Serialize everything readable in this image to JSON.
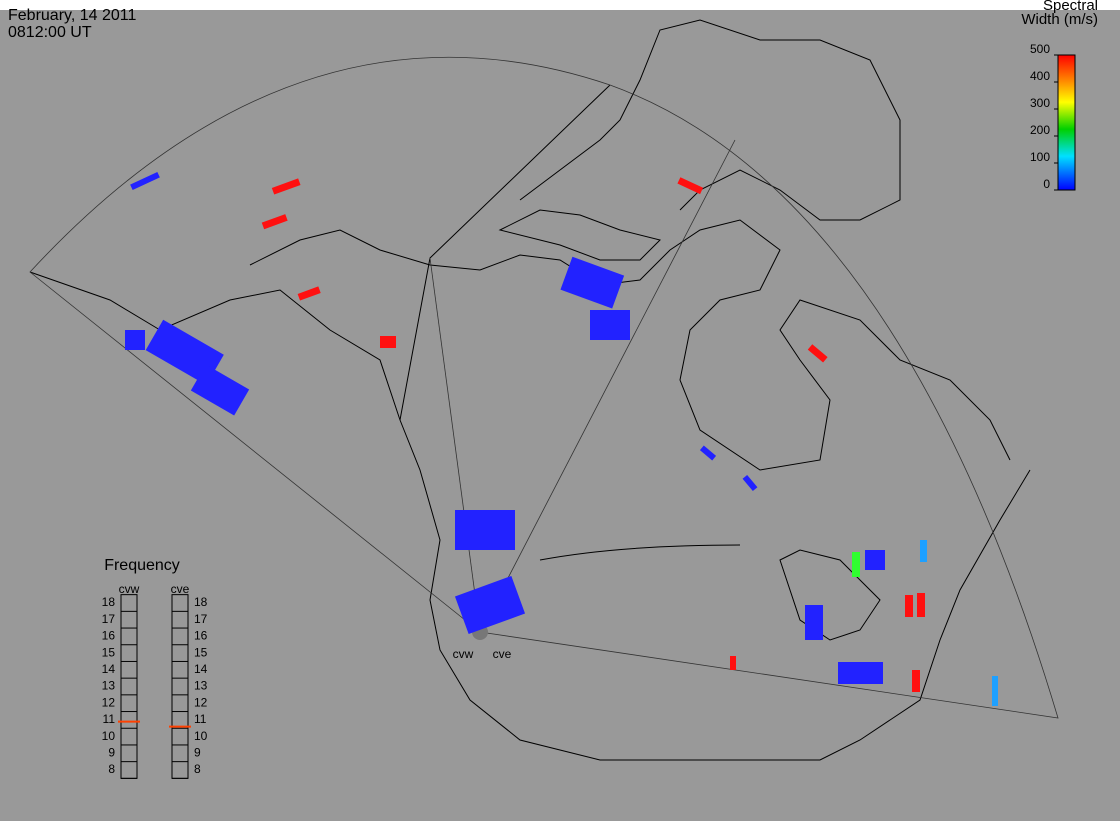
{
  "header": {
    "date": "February, 14 2011",
    "time": "0812:00 UT"
  },
  "colorbar": {
    "title_line1": "Spectral",
    "title_line2": "Width (m/s)",
    "range": [
      0,
      500
    ],
    "ticks": [
      0,
      100,
      200,
      300,
      400,
      500
    ]
  },
  "frequency": {
    "title": "Frequency",
    "range": [
      8,
      18
    ],
    "ticks": [
      8,
      9,
      10,
      11,
      12,
      13,
      14,
      15,
      16,
      17,
      18
    ],
    "radars": [
      {
        "name": "cvw",
        "value": 10.9
      },
      {
        "name": "cve",
        "value": 10.6
      }
    ]
  },
  "site_labels": [
    "cvw",
    "cve"
  ]
}
